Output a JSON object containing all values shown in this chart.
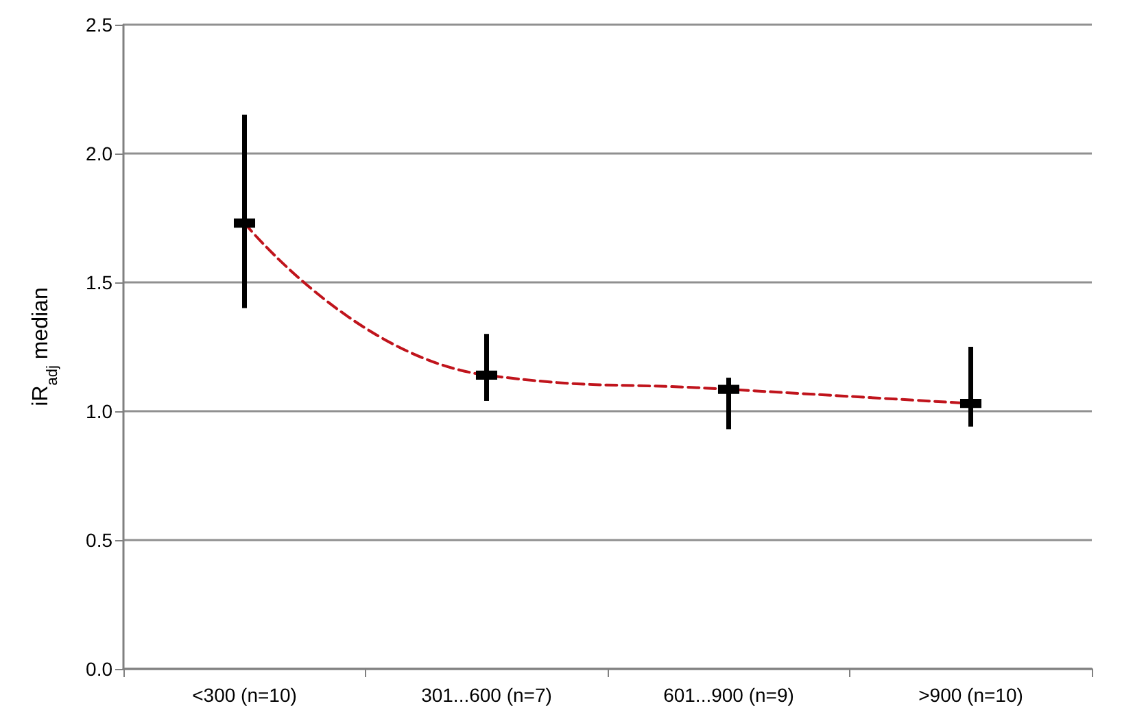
{
  "chart_data": {
    "type": "line",
    "ylabel": "iR$_{adj}$ median",
    "categories": [
      "<300 (n=10)",
      "301...600 (n=7)",
      "601...900 (n=9)",
      ">900 (n=10)"
    ],
    "series": [
      {
        "color": "#c0141c",
        "values": [
          1.73,
          1.14,
          1.085,
          1.03
        ],
        "errors": [
          [
            1.4,
            2.15
          ],
          [
            1.04,
            1.3
          ],
          [
            0.93,
            1.13
          ],
          [
            0.94,
            1.25
          ]
        ]
      }
    ],
    "ylim": [
      0,
      2.5
    ],
    "yticks": [
      {
        "value": 0,
        "label": "0.0"
      },
      0.5,
      {
        "value": 1,
        "label": "1.0"
      },
      1.5,
      {
        "value": 2,
        "label": "2.0"
      },
      2.5
    ],
    "grid": "y",
    "marker": "square",
    "line_style": "dashed"
  }
}
